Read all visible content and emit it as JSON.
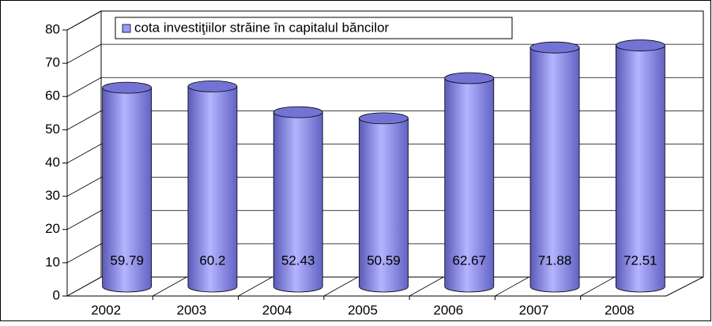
{
  "chart_data": {
    "type": "bar",
    "legend": "cota investiţiilor străine în capitalul băncilor",
    "categories": [
      "2002",
      "2003",
      "2004",
      "2005",
      "2006",
      "2007",
      "2008"
    ],
    "values": [
      59.79,
      60.2,
      52.43,
      50.59,
      62.67,
      71.88,
      72.51
    ],
    "color": "#9999ff",
    "ylim": [
      0,
      80
    ],
    "yticks": [
      0,
      10,
      20,
      30,
      40,
      50,
      60,
      70,
      80
    ],
    "grid": true
  }
}
